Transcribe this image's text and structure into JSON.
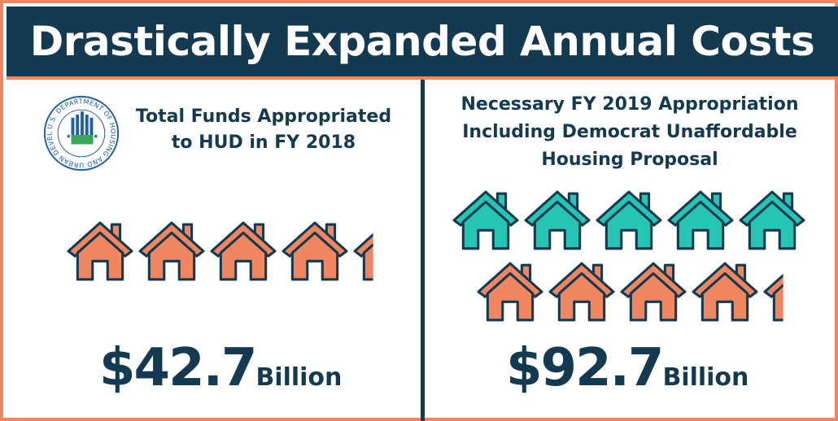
{
  "header": {
    "title": "Drastically Expanded Annual Costs"
  },
  "left_panel": {
    "logo_label": "U.S. DEPARTMENT OF HOUSING AND URBAN DEVELOPMENT",
    "label_line1": "Total Funds Appropriated",
    "label_line2": "to HUD in FY 2018",
    "amount_value": "$42.7",
    "amount_unit": "Billion",
    "orange_houses": 4.3
  },
  "right_panel": {
    "label_line1": "Necessary FY 2019 Appropriation",
    "label_line2": "Including Democrat Unaffordable",
    "label_line3": "Housing Proposal",
    "amount_value": "$92.7",
    "amount_unit": "Billion",
    "teal_houses": 5,
    "orange_houses": 4.3
  },
  "colors": {
    "navy": "#143a52",
    "orange": "#f08660",
    "teal": "#26c5b3",
    "white": "#ffffff"
  },
  "icons": {
    "house": "house-icon",
    "logo": "hud-seal-icon"
  }
}
